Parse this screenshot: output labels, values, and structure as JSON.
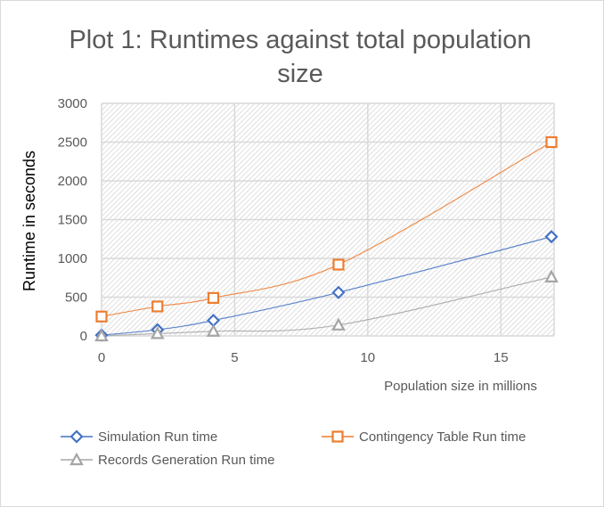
{
  "chart_data": {
    "type": "line",
    "title": "Plot 1: Runtimes against total population size",
    "xlabel": "Population size in millions",
    "ylabel": "Runtime in seconds",
    "xlim": [
      0,
      17
    ],
    "ylim": [
      0,
      3000
    ],
    "xticks": [
      0,
      5,
      10,
      15
    ],
    "yticks": [
      0,
      500,
      1000,
      1500,
      2000,
      2500,
      3000
    ],
    "grid": true,
    "legend_position": "bottom",
    "series": [
      {
        "name": "Simulation Run time",
        "color": "#4472c4",
        "marker": "diamond",
        "x": [
          0,
          2.1,
          4.2,
          8.9,
          16.9
        ],
        "y": [
          10,
          80,
          200,
          560,
          1280
        ]
      },
      {
        "name": "Contingency Table Run time",
        "color": "#ed7d31",
        "marker": "square",
        "x": [
          0,
          2.1,
          4.2,
          8.9,
          16.9
        ],
        "y": [
          250,
          380,
          490,
          920,
          2500
        ]
      },
      {
        "name": "Records Generation Run time",
        "color": "#a5a5a5",
        "marker": "triangle",
        "x": [
          0,
          2.1,
          4.2,
          8.9,
          16.9
        ],
        "y": [
          0,
          30,
          60,
          140,
          760
        ]
      }
    ]
  }
}
